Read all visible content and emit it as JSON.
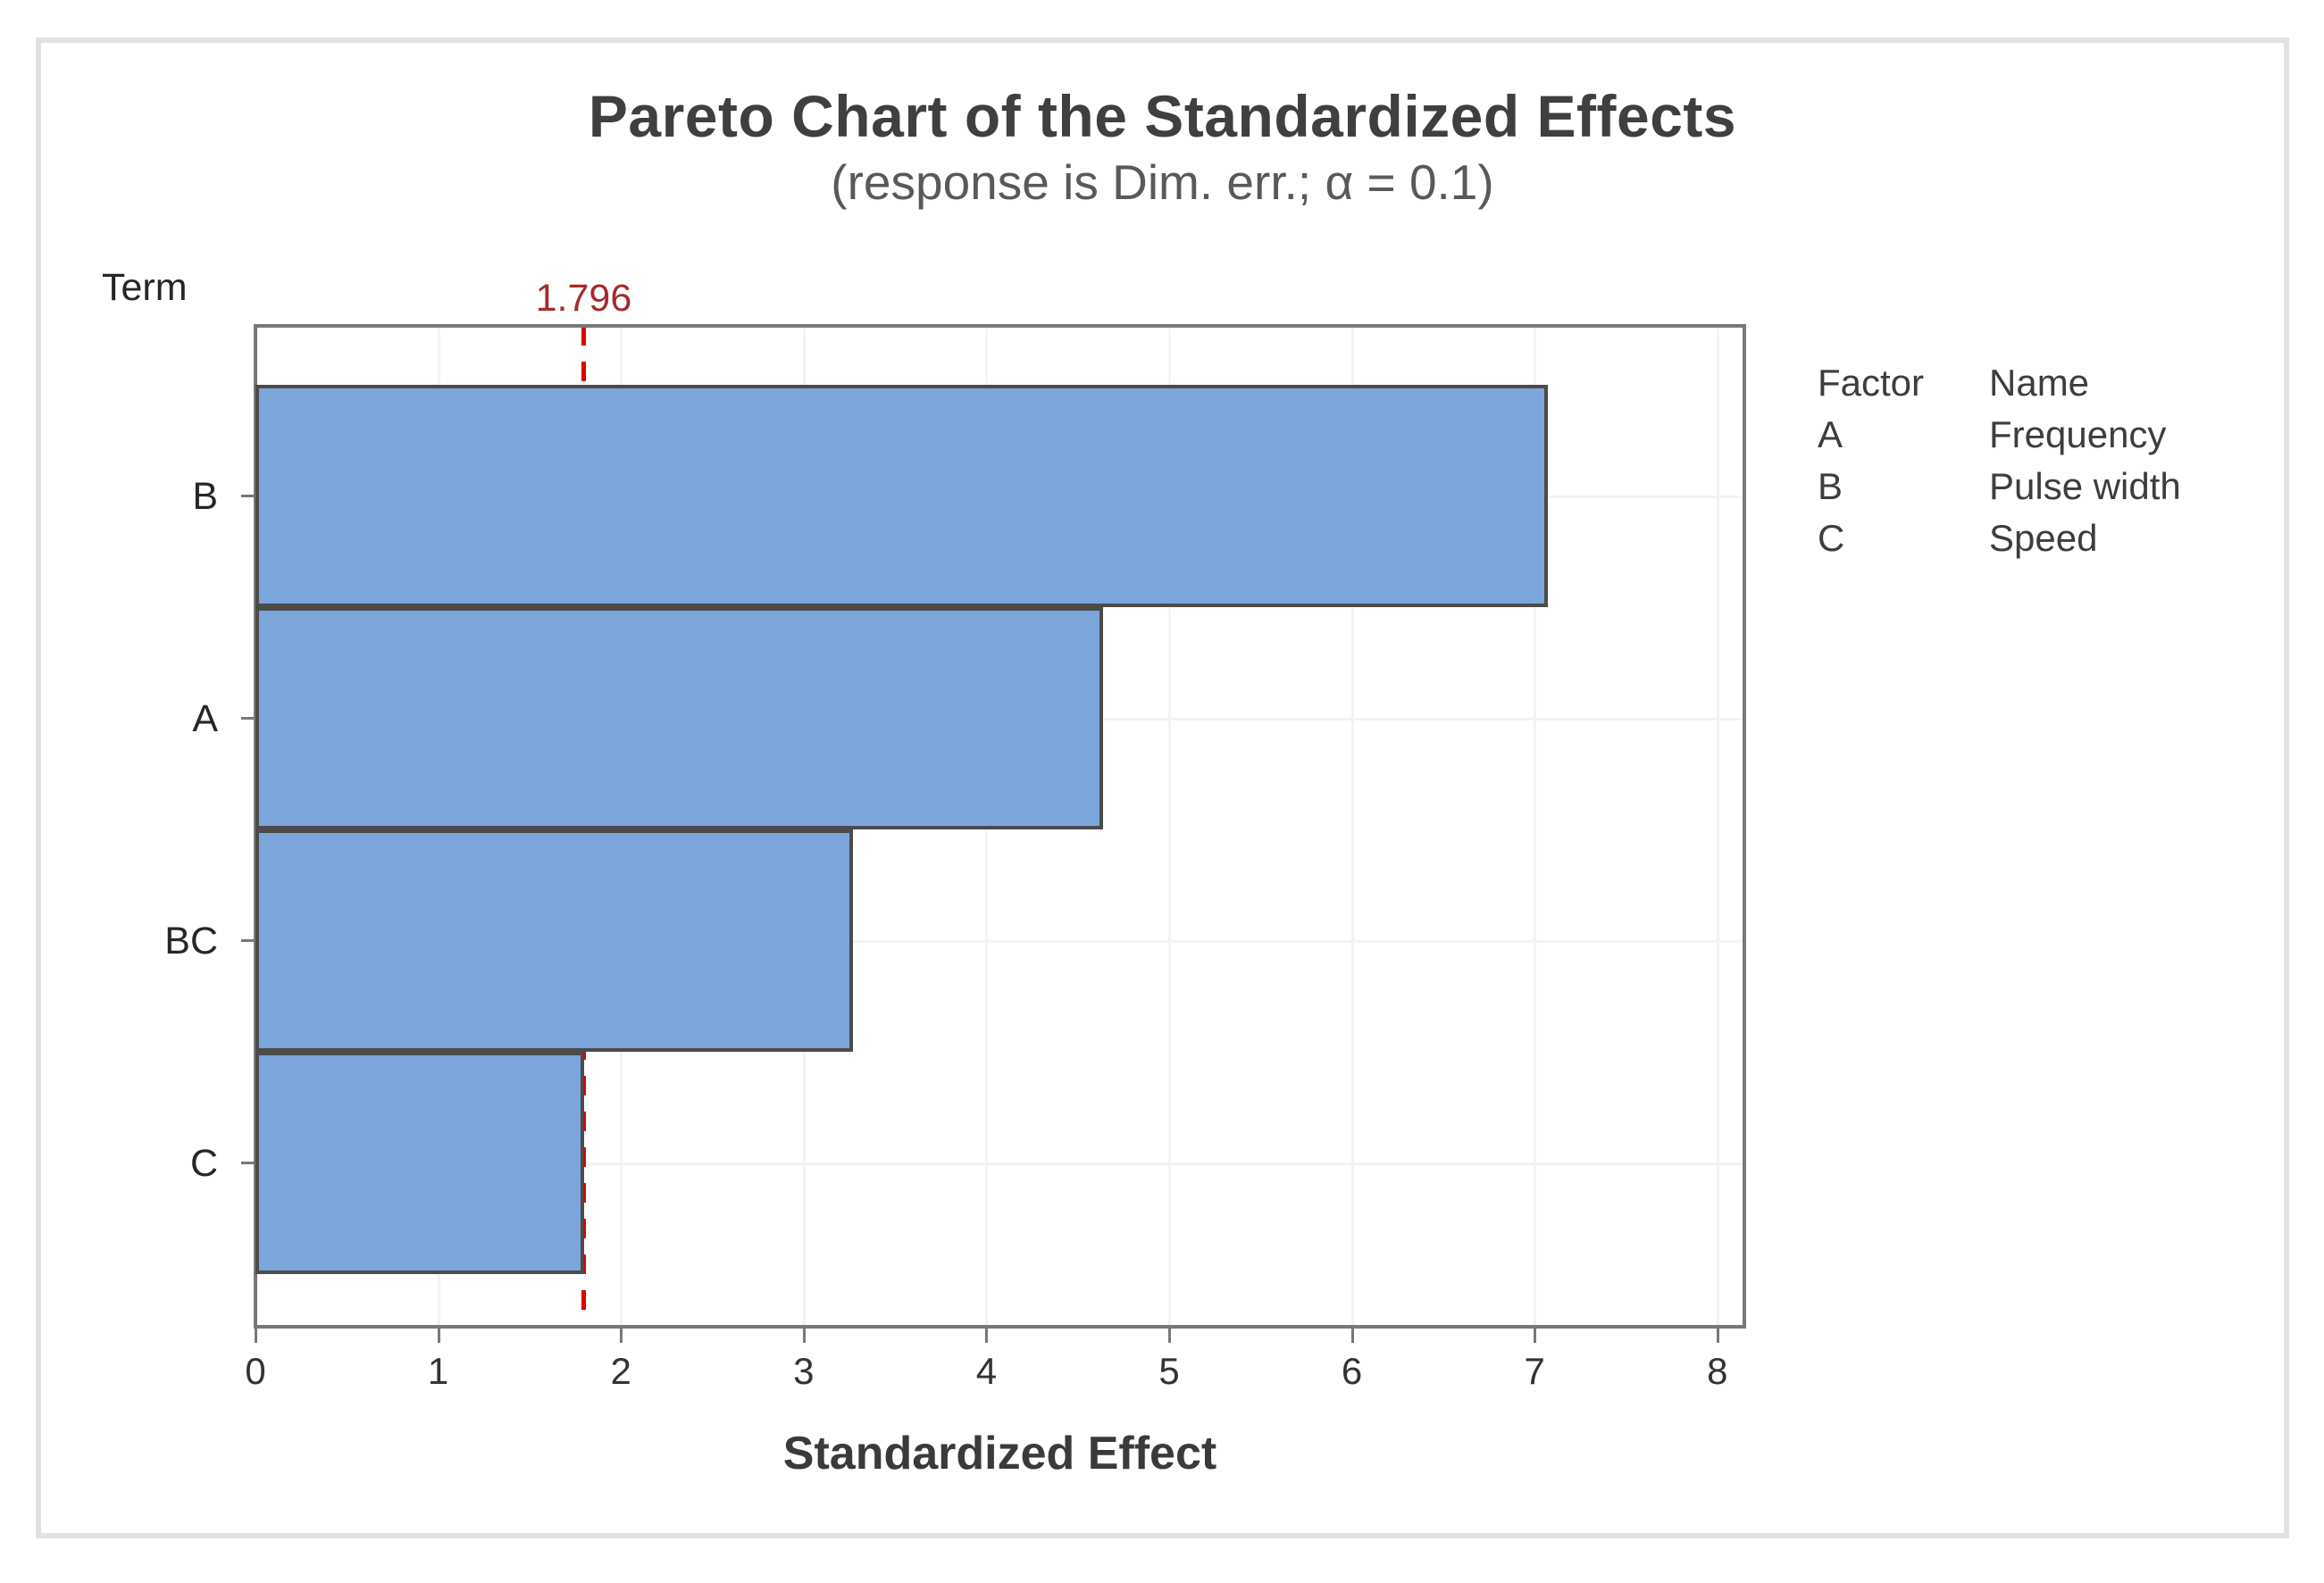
{
  "figure": {
    "term_axis_label": "Term",
    "reference_label": "1.796",
    "colors": {
      "bar_fill": "#7ca6da",
      "bar_border": "#4b4b4b",
      "reference_line": "#de0000",
      "reference_label_text": "#a52a2a",
      "frame": "#787878",
      "gridline": "#f3f3f3",
      "title_text": "#3f3f3f",
      "subtitle_text": "#595959",
      "outer_border": "#e1e1e1"
    }
  },
  "chart_data": {
    "type": "bar",
    "orientation": "horizontal",
    "title": "Pareto Chart of the Standardized Effects",
    "subtitle": "(response is Dim. err.; α = 0.1)",
    "ylabel": "Term",
    "xlabel": "Standardized Effect",
    "categories": [
      "B",
      "A",
      "BC",
      "C"
    ],
    "values": [
      7.07,
      4.64,
      3.27,
      1.8
    ],
    "xlim": [
      0,
      8
    ],
    "xticks": [
      0,
      1,
      2,
      3,
      4,
      5,
      6,
      7,
      8
    ],
    "grid": true,
    "reference_line": 1.796,
    "legend": {
      "position": "right",
      "col1_header": "Factor",
      "col2_header": "Name",
      "rows": [
        {
          "factor": "A",
          "name": "Frequency"
        },
        {
          "factor": "B",
          "name": "Pulse width"
        },
        {
          "factor": "C",
          "name": "Speed"
        }
      ]
    }
  }
}
